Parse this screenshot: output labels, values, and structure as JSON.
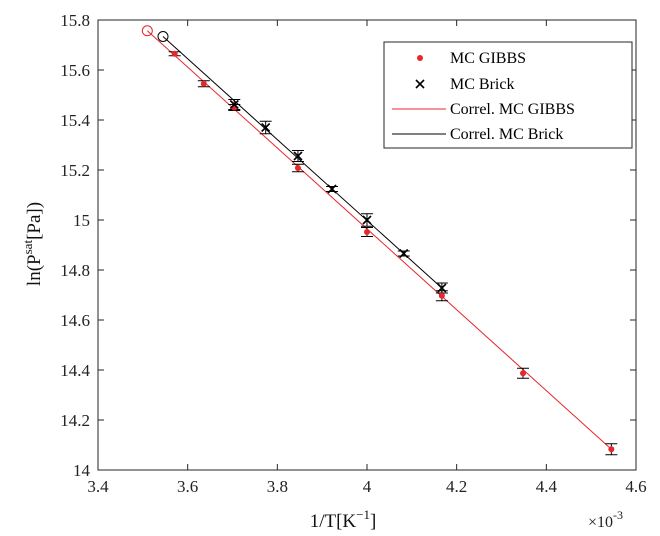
{
  "chart_data": {
    "type": "scatter",
    "xlabel": "1/T[K",
    "xlabel_sup": "−1",
    "xlabel_end": "]",
    "ylabel": "ln(P",
    "ylabel_sup": "sat",
    "ylabel_end": "[Pa])",
    "x_exponent": "×10",
    "x_exponent_sup": "-3",
    "xlim": [
      3.4,
      4.6
    ],
    "ylim": [
      14.0,
      15.8
    ],
    "x_ticks": [
      3.4,
      3.6,
      3.8,
      4.0,
      4.2,
      4.4,
      4.6
    ],
    "x_tick_labels": [
      "3.4",
      "3.6",
      "3.8",
      "4",
      "4.2",
      "4.4",
      "4.6"
    ],
    "y_ticks": [
      14.0,
      14.2,
      14.4,
      14.6,
      14.8,
      15.0,
      15.2,
      15.4,
      15.6,
      15.8
    ],
    "y_tick_labels": [
      "14",
      "14.2",
      "14.4",
      "14.6",
      "14.8",
      "15",
      "15.2",
      "15.4",
      "15.6",
      "15.8"
    ],
    "grid": false,
    "legend_position": "top-right",
    "series": [
      {
        "name": "MC GIBBS",
        "kind": "markers",
        "marker": "dot",
        "color": "#e8262b",
        "x": [
          3.571,
          3.636,
          3.704,
          3.846,
          4.0,
          4.167,
          4.348,
          4.545
        ],
        "y": [
          15.665,
          15.545,
          15.45,
          15.208,
          14.952,
          14.697,
          14.387,
          14.083
        ],
        "err": [
          0.008,
          0.012,
          0.012,
          0.015,
          0.018,
          0.02,
          0.02,
          0.022
        ]
      },
      {
        "name": "MC Brick",
        "kind": "markers",
        "marker": "x",
        "color": "#000000",
        "x": [
          3.704,
          3.774,
          3.846,
          3.922,
          4.0,
          4.082,
          4.167
        ],
        "y": [
          15.462,
          15.37,
          15.256,
          15.124,
          15.0,
          14.866,
          14.728
        ],
        "err": [
          0.02,
          0.025,
          0.022,
          0.01,
          0.025,
          0.01,
          0.02
        ]
      },
      {
        "name": "Correl. MC GIBBS",
        "kind": "line",
        "color": "#e8262b",
        "x": [
          3.51,
          4.545
        ],
        "y": [
          15.757,
          14.083
        ]
      },
      {
        "name": "Correl. MC Brick",
        "kind": "line",
        "color": "#000000",
        "x": [
          3.545,
          4.167
        ],
        "y": [
          15.734,
          14.728
        ]
      }
    ],
    "open_circles": [
      {
        "x": 3.51,
        "y": 15.757,
        "color": "#e8262b"
      },
      {
        "x": 3.545,
        "y": 15.734,
        "color": "#000000"
      }
    ]
  }
}
